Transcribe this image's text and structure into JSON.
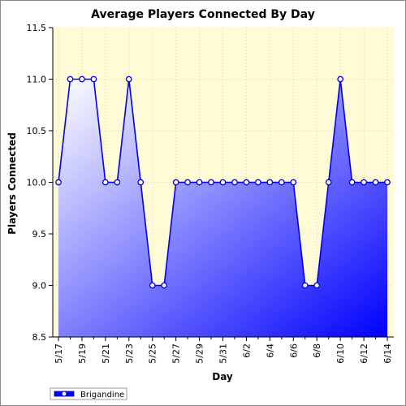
{
  "chart_data": {
    "type": "area",
    "title": "Average Players Connected By Day",
    "xlabel": "Day",
    "ylabel": "Players Connected",
    "ylim": [
      8.5,
      11.5
    ],
    "y_ticks": [
      "8.5",
      "9.0",
      "9.5",
      "10.0",
      "10.5",
      "11.0",
      "11.5"
    ],
    "x_tick_labels": [
      "5/17",
      "5/19",
      "5/21",
      "5/23",
      "5/25",
      "5/27",
      "5/29",
      "5/31",
      "6/2",
      "6/4",
      "6/6",
      "6/8",
      "6/10",
      "6/12",
      "6/14"
    ],
    "x": [
      "5/17",
      "5/18",
      "5/19",
      "5/20",
      "5/21",
      "5/22",
      "5/23",
      "5/24",
      "5/25",
      "5/26",
      "5/27",
      "5/28",
      "5/29",
      "5/30",
      "5/31",
      "6/1",
      "6/2",
      "6/3",
      "6/4",
      "6/5",
      "6/6",
      "6/7",
      "6/8",
      "6/9",
      "6/10",
      "6/11",
      "6/12",
      "6/13",
      "6/14"
    ],
    "series": [
      {
        "name": "Brigandine",
        "values": [
          10,
          11,
          11,
          11,
          10,
          10,
          11,
          10,
          9,
          9,
          10,
          10,
          10,
          10,
          10,
          10,
          10,
          10,
          10,
          10,
          10,
          9,
          9,
          10,
          11,
          10,
          10,
          10,
          10
        ]
      }
    ],
    "grid": true,
    "legend_position": "bottom-left",
    "colors": {
      "plot_background": "#fffbd6",
      "line": "#0000ee",
      "fill_light": "#ffffff",
      "fill_dark": "#0000ff",
      "marker_fill": "#ffffff",
      "grid": "#c8c8a0"
    }
  }
}
